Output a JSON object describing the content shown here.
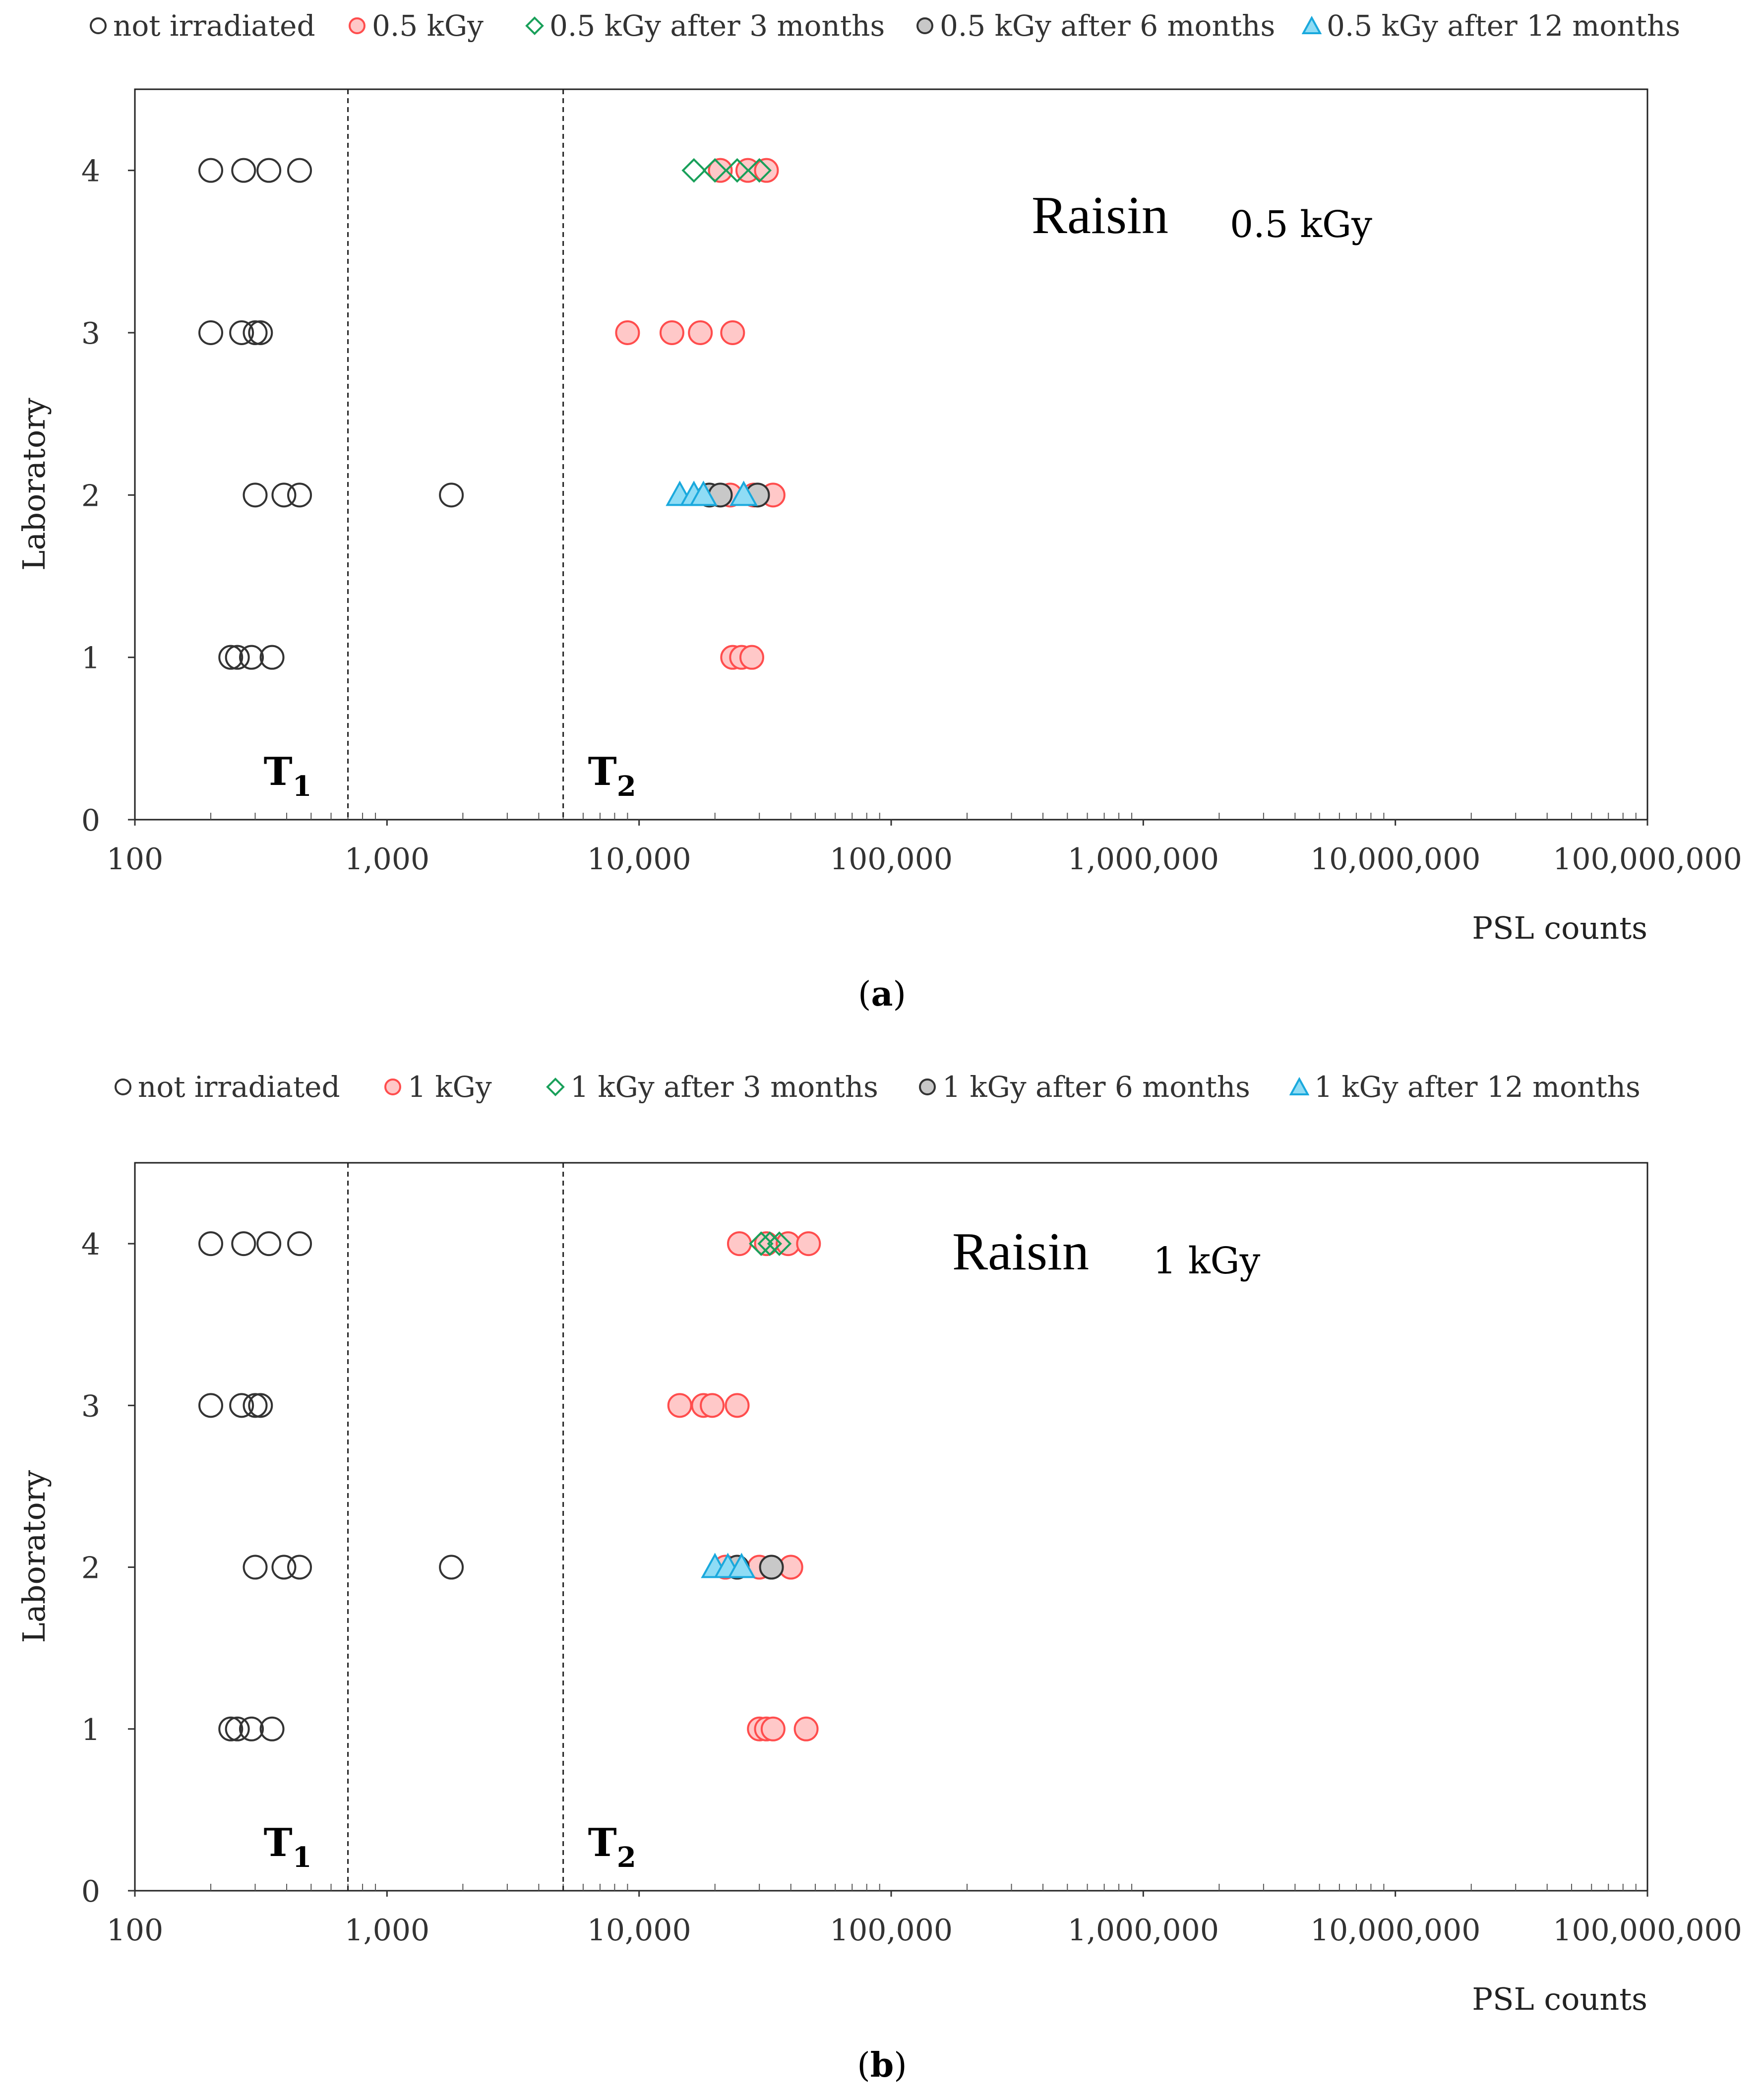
{
  "chart_data": [
    {
      "type": "scatter",
      "panel_label": "a",
      "title": "Raisin",
      "subtitle": "0.5 kGy",
      "xlabel": "PSL counts",
      "ylabel": "Laboratory",
      "xscale": "log",
      "xlim": [
        100,
        100000000
      ],
      "ylim": [
        0,
        4.5
      ],
      "x_tick_labels": [
        "100",
        "1,000",
        "10,000",
        "100,000",
        "1,000,000",
        "10,000,000",
        "100,000,000"
      ],
      "y_tick_labels": [
        "0",
        "1",
        "2",
        "3",
        "4"
      ],
      "thresholds": [
        {
          "label": "T",
          "sub": "1",
          "x": 700
        },
        {
          "label": "T",
          "sub": "2",
          "x": 5000
        }
      ],
      "legend": [
        "not irradiated",
        "0.5 kGy",
        "0.5 kGy after 3 months",
        "0.5 kGy after 6 months",
        "0.5 kGy after 12 months"
      ],
      "series": [
        {
          "name": "not irradiated",
          "marker": "circle-open",
          "color": "#333333",
          "points": [
            [
              200,
              4
            ],
            [
              270,
              4
            ],
            [
              340,
              4
            ],
            [
              450,
              4
            ],
            [
              200,
              3
            ],
            [
              265,
              3
            ],
            [
              300,
              3
            ],
            [
              315,
              3
            ],
            [
              300,
              2
            ],
            [
              390,
              2
            ],
            [
              450,
              2
            ],
            [
              1800,
              2
            ],
            [
              240,
              1
            ],
            [
              255,
              1
            ],
            [
              290,
              1
            ],
            [
              350,
              1
            ]
          ]
        },
        {
          "name": "0.5 kGy",
          "marker": "circle-filled",
          "color": "#ff4d4d",
          "fill": "#ffc8c8",
          "points": [
            [
              21000,
              4
            ],
            [
              27000,
              4
            ],
            [
              32000,
              4
            ],
            [
              9000,
              3
            ],
            [
              13500,
              3
            ],
            [
              17500,
              3
            ],
            [
              23500,
              3
            ],
            [
              23000,
              2
            ],
            [
              28500,
              2
            ],
            [
              34000,
              2
            ],
            [
              23500,
              1
            ],
            [
              25500,
              1
            ],
            [
              28000,
              1
            ]
          ]
        },
        {
          "name": "0.5 kGy after 3 months",
          "marker": "diamond-open",
          "color": "#19a05a",
          "points": [
            [
              16500,
              4
            ],
            [
              20000,
              4
            ],
            [
              24500,
              4
            ],
            [
              30000,
              4
            ]
          ]
        },
        {
          "name": "0.5 kGy after 6 months",
          "marker": "circle-gray",
          "color": "#333333",
          "fill": "#c8c8c8",
          "points": [
            [
              19000,
              2
            ],
            [
              21000,
              2
            ],
            [
              29500,
              2
            ]
          ]
        },
        {
          "name": "0.5 kGy after 12 months",
          "marker": "triangle",
          "color": "#1aa9dd",
          "fill": "#8fdcf5",
          "points": [
            [
              14500,
              2
            ],
            [
              16500,
              2
            ],
            [
              18000,
              2
            ],
            [
              26000,
              2
            ]
          ]
        }
      ]
    },
    {
      "type": "scatter",
      "panel_label": "b",
      "title": "Raisin",
      "subtitle": "1 kGy",
      "xlabel": "PSL counts",
      "ylabel": "Laboratory",
      "xscale": "log",
      "xlim": [
        100,
        100000000
      ],
      "ylim": [
        0,
        4.5
      ],
      "x_tick_labels": [
        "100",
        "1,000",
        "10,000",
        "100,000",
        "1,000,000",
        "10,000,000",
        "100,000,000"
      ],
      "y_tick_labels": [
        "0",
        "1",
        "2",
        "3",
        "4"
      ],
      "thresholds": [
        {
          "label": "T",
          "sub": "1",
          "x": 700
        },
        {
          "label": "T",
          "sub": "2",
          "x": 5000
        }
      ],
      "legend": [
        "not irradiated",
        "1 kGy",
        "1 kGy after 3 months",
        "1 kGy after 6 months",
        "1 kGy after 12 months"
      ],
      "series": [
        {
          "name": "not irradiated",
          "marker": "circle-open",
          "color": "#333333",
          "points": [
            [
              200,
              4
            ],
            [
              270,
              4
            ],
            [
              340,
              4
            ],
            [
              450,
              4
            ],
            [
              200,
              3
            ],
            [
              265,
              3
            ],
            [
              300,
              3
            ],
            [
              315,
              3
            ],
            [
              300,
              2
            ],
            [
              390,
              2
            ],
            [
              450,
              2
            ],
            [
              1800,
              2
            ],
            [
              240,
              1
            ],
            [
              255,
              1
            ],
            [
              290,
              1
            ],
            [
              350,
              1
            ]
          ]
        },
        {
          "name": "1 kGy",
          "marker": "circle-filled",
          "color": "#ff4d4d",
          "fill": "#ffc8c8",
          "points": [
            [
              25000,
              4
            ],
            [
              32000,
              4
            ],
            [
              39000,
              4
            ],
            [
              47000,
              4
            ],
            [
              14500,
              3
            ],
            [
              18000,
              3
            ],
            [
              19500,
              3
            ],
            [
              24500,
              3
            ],
            [
              22000,
              2
            ],
            [
              30000,
              2
            ],
            [
              40000,
              2
            ],
            [
              30000,
              1
            ],
            [
              32000,
              1
            ],
            [
              34000,
              1
            ],
            [
              46000,
              1
            ]
          ]
        },
        {
          "name": "1 kGy after 3 months",
          "marker": "diamond-open",
          "color": "#19a05a",
          "points": [
            [
              30500,
              4
            ],
            [
              33000,
              4
            ],
            [
              36000,
              4
            ]
          ]
        },
        {
          "name": "1 kGy after 6 months",
          "marker": "circle-gray",
          "color": "#333333",
          "fill": "#c8c8c8",
          "points": [
            [
              24500,
              2
            ],
            [
              33500,
              2
            ]
          ]
        },
        {
          "name": "1 kGy after 12 months",
          "marker": "triangle",
          "color": "#1aa9dd",
          "fill": "#8fdcf5",
          "points": [
            [
              20000,
              2
            ],
            [
              22500,
              2
            ],
            [
              25500,
              2
            ]
          ]
        }
      ]
    }
  ]
}
